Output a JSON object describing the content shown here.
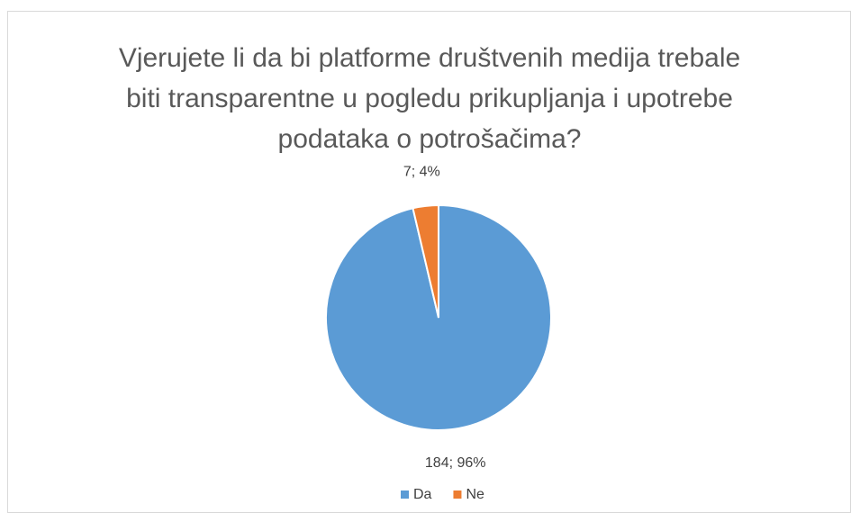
{
  "chart_data": {
    "type": "pie",
    "title": "Vjerujete li da bi platforme društvenih medija trebale biti transparentne u pogledu prikupljanja i upotrebe podataka o potrošačima?",
    "categories": [
      "Da",
      "Ne"
    ],
    "values": [
      184,
      7
    ],
    "value_labels": [
      "184; 96%",
      "7; 4%"
    ],
    "colors": [
      "#5b9bd5",
      "#ed7d31"
    ],
    "legend": "bottom"
  }
}
